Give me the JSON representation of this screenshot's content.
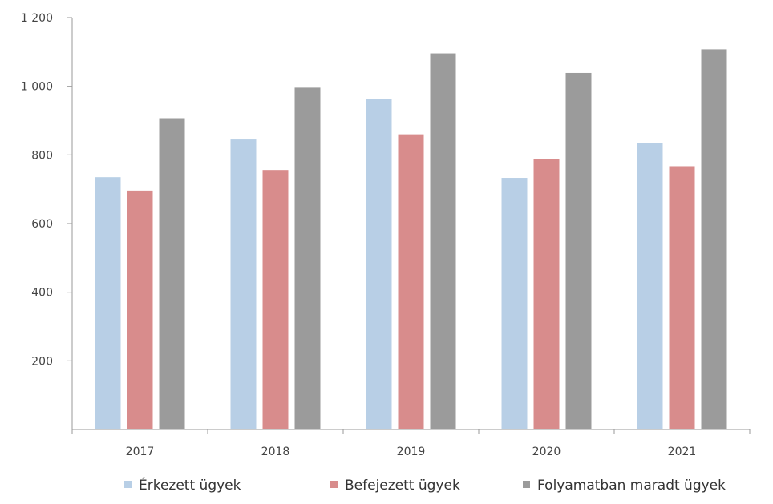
{
  "chart_data": {
    "type": "bar",
    "title": "",
    "xlabel": "",
    "ylabel": "",
    "categories": [
      "2017",
      "2018",
      "2019",
      "2020",
      "2021"
    ],
    "series": [
      {
        "name": "Érkezett ügyek",
        "color": "#b8cfe6",
        "values": [
          735,
          845,
          962,
          733,
          834
        ]
      },
      {
        "name": "Befejezett ügyek",
        "color": "#d88c8c",
        "values": [
          696,
          756,
          860,
          787,
          767
        ]
      },
      {
        "name": "Folyamatban maradt ügyek",
        "color": "#9b9b9b",
        "values": [
          907,
          996,
          1096,
          1039,
          1108
        ]
      }
    ],
    "ylim": [
      0,
      1200
    ],
    "yticks": [
      200,
      400,
      600,
      800,
      1000,
      1200
    ],
    "ytick_labels": [
      "200",
      "400",
      "600",
      "800",
      "1 000",
      "1 200"
    ],
    "grid": false,
    "legend_position": "bottom"
  }
}
